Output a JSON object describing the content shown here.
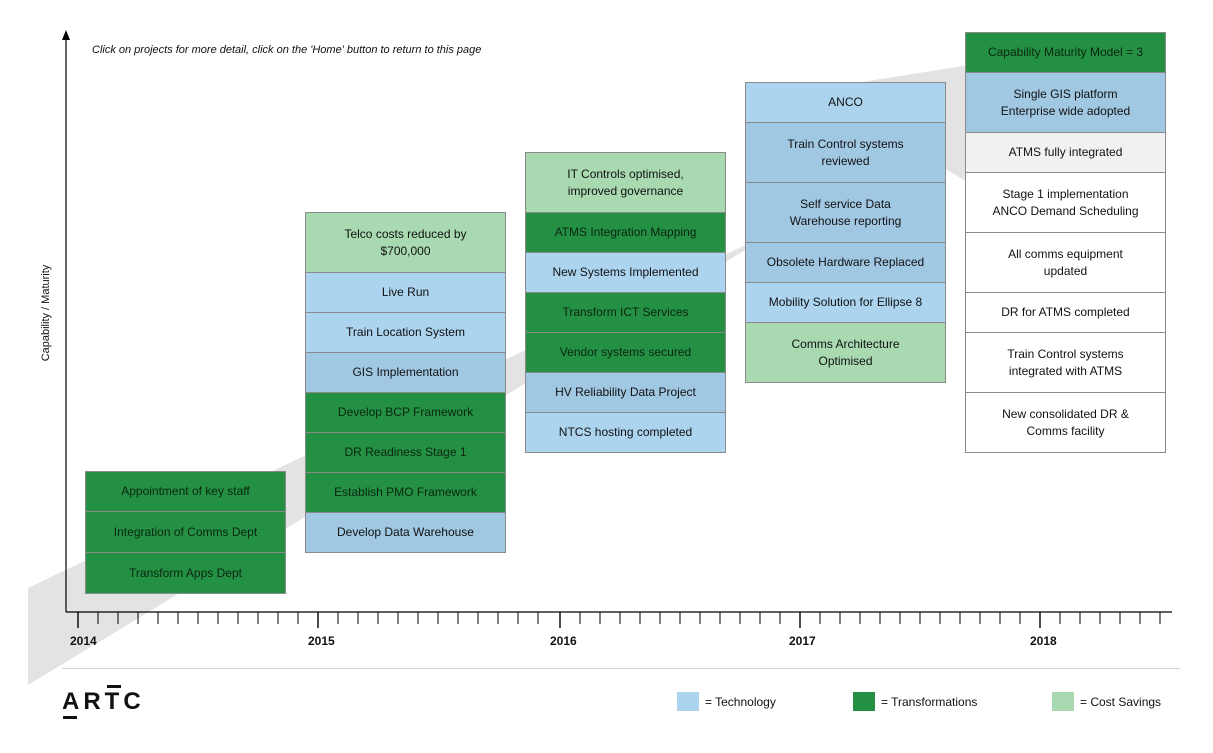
{
  "instruction": "Click on projects for more detail, click on the 'Home' button to return to this page",
  "y_axis_label": "Capability / Maturity",
  "years": [
    "2014",
    "2015",
    "2016",
    "2017",
    "2018"
  ],
  "logo": "ARTC",
  "colors": {
    "technology": "#acd4ef",
    "technology_alt": "#a1c8e3",
    "transformations": "#239044",
    "cost_savings": "#a8d9b0",
    "white": "#ffffff",
    "light_gray": "#f1f1f1",
    "arrow": "#e3e3e3"
  },
  "legend": [
    {
      "label": "= Technology",
      "color": "#acd4ef"
    },
    {
      "label": "= Transformations",
      "color": "#239044"
    },
    {
      "label": "= Cost Savings",
      "color": "#a8d9b0"
    }
  ],
  "columns": [
    {
      "year": "2014",
      "items": [
        {
          "lines": [
            "Appointment of key staff"
          ],
          "category": "transformations"
        },
        {
          "lines": [
            "Integration of Comms Dept"
          ],
          "category": "transformations"
        },
        {
          "lines": [
            "Transform Apps Dept"
          ],
          "category": "transformations"
        }
      ]
    },
    {
      "year": "2015",
      "items": [
        {
          "lines": [
            "Telco costs reduced by",
            "$700,000"
          ],
          "category": "cost_savings"
        },
        {
          "lines": [
            "Live Run"
          ],
          "category": "technology"
        },
        {
          "lines": [
            "Train Location System"
          ],
          "category": "technology"
        },
        {
          "lines": [
            "GIS Implementation"
          ],
          "category": "technology_alt"
        },
        {
          "lines": [
            "Develop BCP Framework"
          ],
          "category": "transformations"
        },
        {
          "lines": [
            "DR Readiness Stage 1"
          ],
          "category": "transformations"
        },
        {
          "lines": [
            "Establish PMO Framework"
          ],
          "category": "transformations"
        },
        {
          "lines": [
            "Develop Data Warehouse"
          ],
          "category": "technology_alt"
        }
      ]
    },
    {
      "year": "2016",
      "items": [
        {
          "lines": [
            "IT Controls optimised,",
            "improved governance"
          ],
          "category": "cost_savings"
        },
        {
          "lines": [
            "ATMS Integration Mapping"
          ],
          "category": "transformations"
        },
        {
          "lines": [
            "New Systems Implemented"
          ],
          "category": "technology"
        },
        {
          "lines": [
            "Transform ICT Services"
          ],
          "category": "transformations"
        },
        {
          "lines": [
            "Vendor systems secured"
          ],
          "category": "transformations"
        },
        {
          "lines": [
            "HV Reliability Data Project"
          ],
          "category": "technology_alt"
        },
        {
          "lines": [
            "NTCS hosting completed"
          ],
          "category": "technology"
        }
      ]
    },
    {
      "year": "2017",
      "items": [
        {
          "lines": [
            "ANCO"
          ],
          "category": "technology"
        },
        {
          "lines": [
            "Train Control systems",
            "reviewed"
          ],
          "category": "technology_alt"
        },
        {
          "lines": [
            "Self service Data",
            "Warehouse reporting"
          ],
          "category": "technology_alt"
        },
        {
          "lines": [
            "Obsolete Hardware Replaced"
          ],
          "category": "technology_alt"
        },
        {
          "lines": [
            "Mobility Solution for Ellipse 8"
          ],
          "category": "technology"
        },
        {
          "lines": [
            "Comms Architecture",
            "Optimised"
          ],
          "category": "cost_savings"
        }
      ]
    },
    {
      "year": "2018",
      "items": [
        {
          "lines": [
            "Capability Maturity Model = 3"
          ],
          "category": "transformations"
        },
        {
          "lines": [
            "Single GIS platform",
            "Enterprise wide adopted"
          ],
          "category": "technology_alt"
        },
        {
          "lines": [
            "ATMS fully integrated"
          ],
          "category": "light_gray"
        },
        {
          "lines": [
            "Stage 1 implementation",
            "ANCO Demand Scheduling"
          ],
          "category": "white"
        },
        {
          "lines": [
            "All comms equipment",
            "updated"
          ],
          "category": "white"
        },
        {
          "lines": [
            "DR for ATMS completed"
          ],
          "category": "white"
        },
        {
          "lines": [
            "Train Control systems",
            "integrated with ATMS"
          ],
          "category": "white"
        },
        {
          "lines": [
            "New consolidated DR &",
            "Comms facility"
          ],
          "category": "white"
        }
      ]
    }
  ]
}
